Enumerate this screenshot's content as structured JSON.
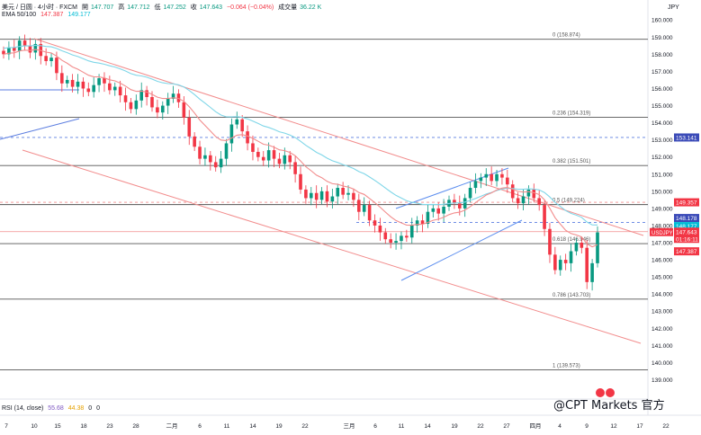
{
  "header": {
    "symbol": "美元 / 日圆 · 4小时 · FXCM",
    "open_label": "開",
    "open": "147.707",
    "high_label": "高",
    "high": "147.712",
    "low_label": "低",
    "low": "147.252",
    "close_label": "收",
    "close": "147.643",
    "change": "−0.064 (−0.04%)",
    "volume_label": "成交量",
    "volume": "36.22 K",
    "ema_label": "EMA 50/100",
    "ema50": "147.387",
    "ema100": "149.177",
    "rsi_label": "RSI (14, close)",
    "rsi1": "55.68",
    "rsi2": "44.38",
    "rsi3": "0",
    "rsi4": "0"
  },
  "watermark": "@CPT Markets 官方",
  "colors": {
    "up": "#089981",
    "down": "#f23645",
    "ema50": "#f28c8c",
    "ema100": "#7fd6e8",
    "channel": "#f28c8c",
    "rising_channel": "#5b8def",
    "fib": "#555555",
    "dashed": "#5b7de0"
  },
  "chart_data": {
    "type": "candlestick",
    "title": "美元 / 日圆 · 4小时 · FXCM",
    "ylabel": "JPY",
    "ylim": [
      138.5,
      160.8
    ],
    "y_ticks": [
      "160.000",
      "159.000",
      "158.000",
      "157.000",
      "156.000",
      "155.000",
      "154.000",
      "153.000",
      "152.000",
      "151.000",
      "150.000",
      "149.000",
      "148.000",
      "147.000",
      "146.000",
      "145.000",
      "144.000",
      "143.000",
      "142.000",
      "141.000",
      "140.000",
      "139.000"
    ],
    "x_ticks": [
      "7",
      "10",
      "15",
      "18",
      "23",
      "28",
      "二月",
      "6",
      "11",
      "14",
      "19",
      "22",
      "三月",
      "6",
      "11",
      "14",
      "19",
      "22",
      "27",
      "四月",
      "4",
      "9",
      "12",
      "17",
      "22"
    ],
    "close_series": [
      158.0,
      158.4,
      158.2,
      158.8,
      158.5,
      158.1,
      158.6,
      157.9,
      157.6,
      157.8,
      156.9,
      156.3,
      156.5,
      156.1,
      156.4,
      156.0,
      155.8,
      156.2,
      156.6,
      156.3,
      155.9,
      156.1,
      155.6,
      155.2,
      154.8,
      155.3,
      155.9,
      155.5,
      154.9,
      154.6,
      155.0,
      155.4,
      155.7,
      155.2,
      154.3,
      153.2,
      152.6,
      151.9,
      152.1,
      151.7,
      151.4,
      151.9,
      152.8,
      153.9,
      154.2,
      153.5,
      152.8,
      152.3,
      152.0,
      151.8,
      152.4,
      151.9,
      151.6,
      152.1,
      151.7,
      151.0,
      150.1,
      149.6,
      149.9,
      149.5,
      150.0,
      149.4,
      149.7,
      150.2,
      149.8,
      149.9,
      149.5,
      148.8,
      149.2,
      148.3,
      148.0,
      147.6,
      147.2,
      147.0,
      147.1,
      147.4,
      147.3,
      148.0,
      148.3,
      148.1,
      148.8,
      149.0,
      148.7,
      149.1,
      149.5,
      149.3,
      149.0,
      149.6,
      150.2,
      150.6,
      150.8,
      151.0,
      150.6,
      151.0,
      150.8,
      150.4,
      149.6,
      149.3,
      149.7,
      150.1,
      149.6,
      149.2,
      147.8,
      146.3,
      145.4,
      146.0,
      145.8,
      146.5,
      147.0,
      146.7,
      144.7,
      145.8,
      147.6
    ],
    "ema50_last": 147.387,
    "ema100_last": 149.177,
    "fib_levels": [
      {
        "label": "0 (158.874)",
        "value": 158.874
      },
      {
        "label": "0.236 (154.319)",
        "value": 154.319
      },
      {
        "label": "0.382 (151.501)",
        "value": 151.501
      },
      {
        "label": "0.5 (149.224)",
        "value": 149.224
      },
      {
        "label": "0.618 (146.946)",
        "value": 146.946
      },
      {
        "label": "0.786 (143.703)",
        "value": 143.703
      },
      {
        "label": "1 (139.573)",
        "value": 139.573
      }
    ],
    "price_labels": [
      {
        "text": "153.141",
        "value": 153.141,
        "color": "#3b4bb8"
      },
      {
        "text": "149.357",
        "value": 149.357,
        "color": "#f23645"
      },
      {
        "text": "148.178",
        "value": 148.178,
        "color": "#3b4bb8"
      },
      {
        "text": "148.177",
        "value": 148.177,
        "color": "#00bcd4"
      },
      {
        "text": "USDJPY",
        "value": 147.643,
        "color": "#f23645"
      },
      {
        "text": "147.643",
        "value": 147.643,
        "color": "#f23645"
      },
      {
        "text": "01:16:11",
        "value": 147.643,
        "color": "#f23645"
      },
      {
        "text": "147.387",
        "value": 147.387,
        "color": "#f23645"
      }
    ],
    "dashed_levels": [
      153.141,
      149.357,
      148.178,
      147.643
    ]
  }
}
